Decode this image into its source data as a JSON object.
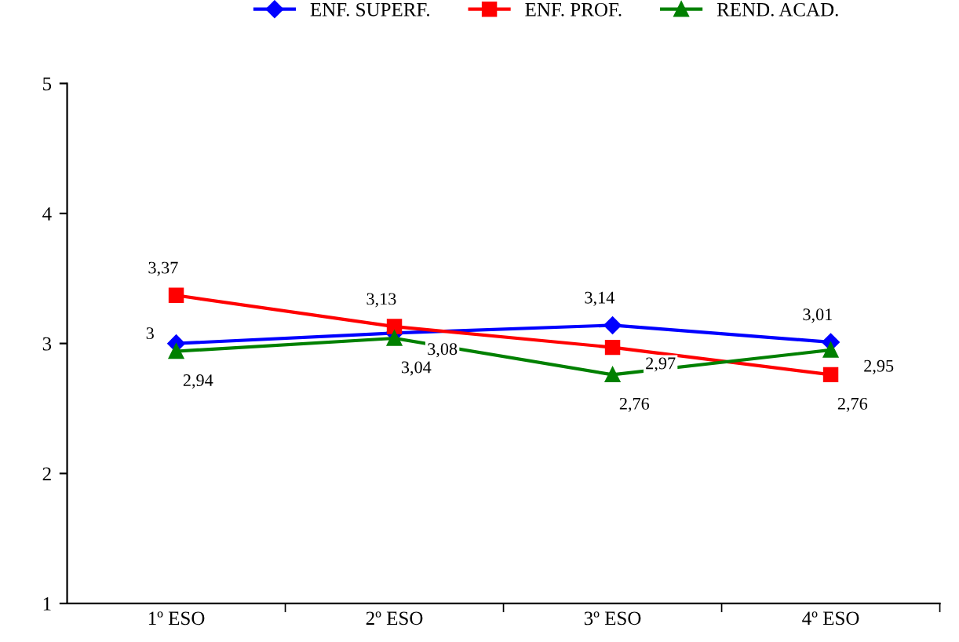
{
  "chart_data": {
    "type": "line",
    "categories": [
      "1º ESO",
      "2º ESO",
      "3º ESO",
      "4º ESO"
    ],
    "series": [
      {
        "name": "ENF. SUPERF.",
        "color": "#0000ff",
        "marker": "diamond",
        "values": [
          3,
          3.08,
          3.14,
          3.01
        ],
        "value_labels": [
          "3",
          "3,08",
          "3,14",
          "3,01"
        ]
      },
      {
        "name": "ENF. PROF.",
        "color": "#ff0000",
        "marker": "square",
        "values": [
          3.37,
          3.13,
          2.97,
          2.76
        ],
        "value_labels": [
          "3,37",
          "3,13",
          "2,97",
          "2,76"
        ]
      },
      {
        "name": "REND. ACAD.",
        "color": "#008000",
        "marker": "triangle",
        "values": [
          2.94,
          3.04,
          2.76,
          2.95
        ],
        "value_labels": [
          "2,94",
          "3,04",
          "2,76",
          "2,95"
        ]
      }
    ],
    "ylim": [
      1,
      5
    ],
    "yticks": [
      1,
      2,
      3,
      4,
      5
    ],
    "grid": false,
    "legend": "top",
    "line_style": "solid"
  }
}
